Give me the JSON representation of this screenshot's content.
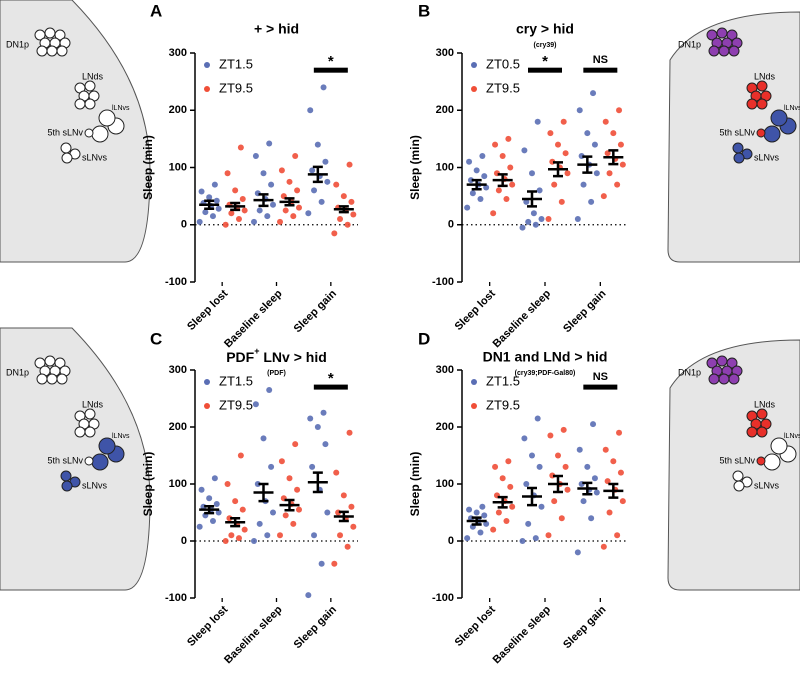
{
  "chart_data": [
    {
      "type": "dot",
      "panel": "A",
      "title": "+ > hid",
      "ylabel": "Sleep (min)",
      "categories": [
        "Sleep lost",
        "Baseline sleep",
        "Sleep gain"
      ],
      "ylim": [
        -100,
        300
      ],
      "yticks": [
        -100,
        0,
        100,
        200,
        300
      ],
      "series": [
        {
          "name": "ZT1.5",
          "color": "#5a6eb4",
          "means": [
            35,
            43,
            88
          ],
          "sems": [
            7,
            10,
            13
          ],
          "points": [
            [
              5,
              15,
              22,
              28,
              33,
              38,
              42,
              48,
              58,
              70
            ],
            [
              5,
              15,
              25,
              35,
              45,
              55,
              70,
              90,
              120,
              142
            ],
            [
              20,
              40,
              60,
              75,
              85,
              95,
              110,
              140,
              200,
              240
            ]
          ]
        },
        {
          "name": "ZT9.5",
          "color": "#f04e37",
          "means": [
            32,
            40,
            27
          ],
          "sems": [
            6,
            6,
            5
          ],
          "points": [
            [
              0,
              10,
              20,
              25,
              30,
              35,
              45,
              60,
              90,
              135
            ],
            [
              5,
              15,
              25,
              30,
              40,
              50,
              60,
              75,
              95,
              120
            ],
            [
              -15,
              0,
              10,
              18,
              25,
              30,
              40,
              50,
              70,
              105
            ]
          ]
        }
      ],
      "annotations": [
        {
          "category": "Sleep gain",
          "text": "*"
        }
      ]
    },
    {
      "type": "dot",
      "panel": "B",
      "title": "cry > hid",
      "subtitle": "(cry39)",
      "ylabel": "Sleep (min)",
      "categories": [
        "Sleep lost",
        "Baseline sleep",
        "Sleep gain"
      ],
      "ylim": [
        -100,
        300
      ],
      "yticks": [
        -100,
        0,
        100,
        200,
        300
      ],
      "series": [
        {
          "name": "ZT0.5",
          "color": "#5a6eb4",
          "means": [
            70,
            45,
            105
          ],
          "sems": [
            8,
            13,
            14
          ],
          "points": [
            [
              30,
              45,
              55,
              65,
              70,
              78,
              85,
              95,
              110,
              120
            ],
            [
              -5,
              0,
              5,
              10,
              20,
              40,
              60,
              90,
              130,
              180
            ],
            [
              10,
              40,
              70,
              90,
              105,
              120,
              140,
              160,
              200,
              230
            ]
          ]
        },
        {
          "name": "ZT9.5",
          "color": "#f04e37",
          "means": [
            78,
            97,
            118
          ],
          "sems": [
            10,
            12,
            12
          ],
          "points": [
            [
              20,
              45,
              60,
              70,
              80,
              90,
              100,
              120,
              140,
              150
            ],
            [
              10,
              40,
              70,
              90,
              100,
              110,
              125,
              140,
              160,
              180
            ],
            [
              50,
              70,
              90,
              105,
              115,
              125,
              140,
              160,
              180,
              200
            ]
          ]
        }
      ],
      "annotations": [
        {
          "category": "Baseline sleep",
          "text": "*"
        },
        {
          "category": "Sleep gain",
          "text": "NS"
        }
      ]
    },
    {
      "type": "dot",
      "panel": "C",
      "title_parts": [
        "PDF",
        "+",
        " LNv > hid"
      ],
      "subtitle": "(PDF)",
      "ylabel": "Sleep (min)",
      "categories": [
        "Sleep lost",
        "Baseline sleep",
        "Sleep gain"
      ],
      "ylim": [
        -100,
        300
      ],
      "yticks": [
        -100,
        0,
        100,
        200,
        300
      ],
      "series": [
        {
          "name": "ZT1.5",
          "color": "#5a6eb4",
          "means": [
            55,
            85,
            103
          ],
          "sems": [
            6,
            15,
            17
          ],
          "points": [
            [
              25,
              35,
              45,
              50,
              55,
              60,
              65,
              75,
              90,
              110
            ],
            [
              0,
              10,
              30,
              50,
              70,
              100,
              130,
              180,
              240,
              265
            ],
            [
              -95,
              -40,
              10,
              50,
              90,
              130,
              170,
              200,
              215,
              225
            ]
          ]
        },
        {
          "name": "ZT9.5",
          "color": "#f04e37",
          "means": [
            33,
            63,
            43
          ],
          "sems": [
            7,
            9,
            8
          ],
          "points": [
            [
              0,
              5,
              10,
              20,
              30,
              40,
              55,
              70,
              100,
              150
            ],
            [
              10,
              30,
              45,
              55,
              65,
              75,
              90,
              110,
              140,
              170
            ],
            [
              -40,
              -10,
              10,
              25,
              40,
              50,
              60,
              80,
              120,
              190
            ]
          ]
        }
      ],
      "annotations": [
        {
          "category": "Sleep gain",
          "text": "*"
        }
      ]
    },
    {
      "type": "dot",
      "panel": "D",
      "title": "DN1 and LNd > hid",
      "subtitle": "(cry39;PDF-Gal80)",
      "ylabel": "Sleep (min)",
      "categories": [
        "Sleep lost",
        "Baseline sleep",
        "Sleep gain"
      ],
      "ylim": [
        -100,
        300
      ],
      "yticks": [
        -100,
        0,
        100,
        200,
        300
      ],
      "series": [
        {
          "name": "ZT1.5",
          "color": "#5a6eb4",
          "means": [
            35,
            78,
            92
          ],
          "sems": [
            6,
            15,
            10
          ],
          "points": [
            [
              5,
              15,
              25,
              30,
              35,
              40,
              45,
              50,
              55,
              60
            ],
            [
              0,
              5,
              30,
              60,
              80,
              100,
              130,
              150,
              180,
              215
            ],
            [
              -20,
              40,
              70,
              85,
              90,
              100,
              110,
              130,
              160,
              205
            ]
          ]
        },
        {
          "name": "ZT9.5",
          "color": "#f04e37",
          "means": [
            68,
            100,
            88
          ],
          "sems": [
            9,
            14,
            12
          ],
          "points": [
            [
              20,
              35,
              50,
              60,
              70,
              80,
              95,
              110,
              130,
              140
            ],
            [
              10,
              40,
              70,
              90,
              100,
              115,
              130,
              150,
              185,
              195
            ],
            [
              -10,
              10,
              50,
              70,
              90,
              105,
              120,
              140,
              160,
              190
            ]
          ]
        }
      ],
      "annotations": [
        {
          "category": "Sleep gain",
          "text": "NS"
        }
      ]
    }
  ],
  "diagrams": [
    {
      "labels": [
        "DN1p",
        "LNds",
        "lLNvs",
        "5th sLNv",
        "sLNvs"
      ],
      "colors": [
        "#ffffff",
        "#ffffff",
        "#ffffff",
        "#ffffff",
        "#ffffff"
      ]
    },
    {
      "labels": [
        "DN1p",
        "LNds",
        "lLNvs",
        "5th sLNv",
        "sLNvs"
      ],
      "colors": [
        "#8e3fb0",
        "#e8302a",
        "#3f54a8",
        "#e8302a",
        "#3f54a8"
      ]
    },
    {
      "labels": [
        "DN1p",
        "LNds",
        "lLNvs",
        "5th sLNv",
        "sLNvs"
      ],
      "colors": [
        "#ffffff",
        "#ffffff",
        "#3f54a8",
        "#ffffff",
        "#3f54a8"
      ]
    },
    {
      "labels": [
        "DN1p",
        "LNds",
        "lLNvs",
        "5th sLNv",
        "sLNvs"
      ],
      "colors": [
        "#8e3fb0",
        "#e8302a",
        "#ffffff",
        "#e8302a",
        "#ffffff"
      ]
    }
  ]
}
